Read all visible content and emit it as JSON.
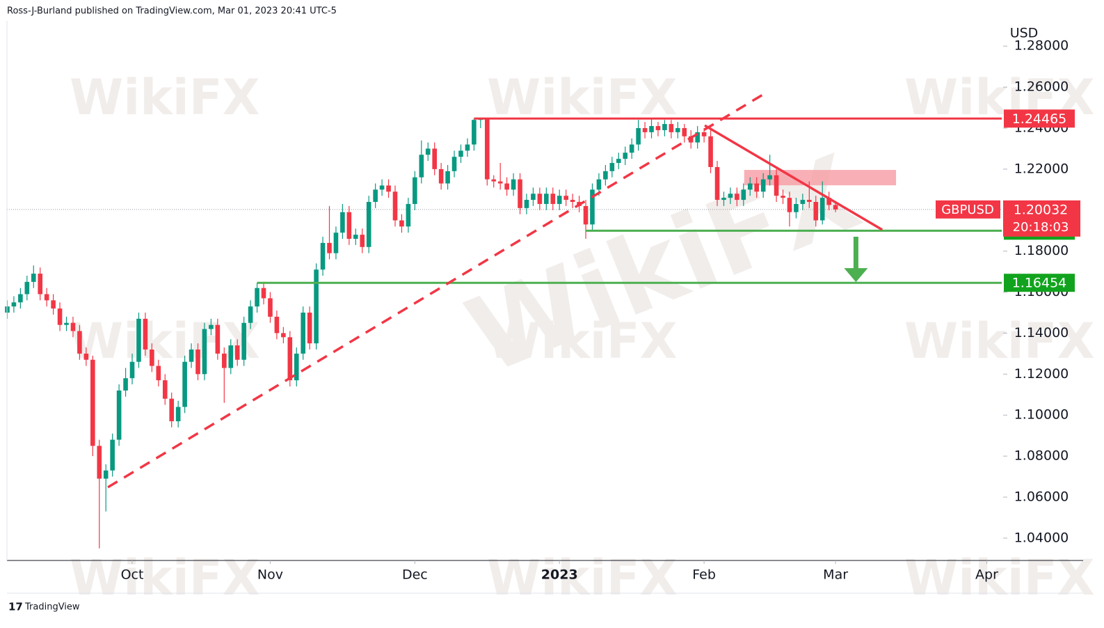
{
  "chart_data": {
    "type": "candlestick",
    "header": "Ross-J-Burland published on TradingView.com, Mar 01, 2023 20:41 UTC-5",
    "currency": "USD",
    "footer": "TradingView",
    "watermark": "WikiFX",
    "countdown": "20:18:03",
    "last_price": 1.20032,
    "ylim": [
      1.0291,
      1.2923
    ],
    "yticks": [
      {
        "value": 1.04,
        "label": "1.04000"
      },
      {
        "value": 1.06,
        "label": "1.06000"
      },
      {
        "value": 1.08,
        "label": "1.08000"
      },
      {
        "value": 1.1,
        "label": "1.10000"
      },
      {
        "value": 1.12,
        "label": "1.12000"
      },
      {
        "value": 1.14,
        "label": "1.14000"
      },
      {
        "value": 1.16,
        "label": "1.16000"
      },
      {
        "value": 1.18,
        "label": "1.18000"
      },
      {
        "value": 1.2,
        "label": "1.20000"
      },
      {
        "value": 1.22,
        "label": "1.22000"
      },
      {
        "value": 1.24,
        "label": "1.24000"
      },
      {
        "value": 1.26,
        "label": "1.26000"
      },
      {
        "value": 1.28,
        "label": "1.28000"
      }
    ],
    "xlim": [
      -0.05,
      151.28
    ],
    "xticks": [
      {
        "value": 19,
        "label": "Oct"
      },
      {
        "value": 40,
        "label": "Nov"
      },
      {
        "value": 62,
        "label": "Dec"
      },
      {
        "value": 84,
        "label": "2023"
      },
      {
        "value": 106,
        "label": "Feb"
      },
      {
        "value": 126,
        "label": "Mar"
      },
      {
        "value": 149,
        "label": "Apr"
      }
    ],
    "series": [
      {
        "name": "GBPUSD",
        "up_color": "#089981",
        "down_color": "#f23645",
        "open": [
          1.15,
          1.153,
          1.155,
          1.159,
          1.165,
          1.169,
          1.159,
          1.156,
          1.152,
          1.144,
          1.145,
          1.141,
          1.13,
          1.127,
          1.085,
          1.069,
          1.073,
          1.088,
          1.112,
          1.118,
          1.126,
          1.147,
          1.132,
          1.124,
          1.117,
          1.108,
          1.097,
          1.104,
          1.126,
          1.132,
          1.12,
          1.142,
          1.144,
          1.13,
          1.123,
          1.134,
          1.127,
          1.145,
          1.153,
          1.162,
          1.157,
          1.148,
          1.14,
          1.138,
          1.117,
          1.13,
          1.15,
          1.135,
          1.171,
          1.184,
          1.179,
          1.189,
          1.199,
          1.186,
          1.188,
          1.182,
          1.204,
          1.21,
          1.212,
          1.209,
          1.195,
          1.192,
          1.203,
          1.216,
          1.227,
          1.23,
          1.22,
          1.213,
          1.219,
          1.226,
          1.229,
          1.232,
          1.244,
          1.2445,
          1.215,
          1.214,
          1.213,
          1.21,
          1.215,
          1.201,
          1.205,
          1.208,
          1.203,
          1.208,
          1.203,
          1.207,
          1.205,
          1.204,
          1.202,
          1.193,
          1.21,
          1.215,
          1.219,
          1.223,
          1.225,
          1.228,
          1.232,
          1.24,
          1.238,
          1.241,
          1.239,
          1.242,
          1.238,
          1.24,
          1.236,
          1.233,
          1.238,
          1.236,
          1.221,
          1.205,
          1.206,
          1.208,
          1.205,
          1.21,
          1.213,
          1.209,
          1.215,
          1.217,
          1.207,
          1.206,
          1.199,
          1.203,
          1.205,
          1.204,
          1.195,
          1.206,
          1.2025
        ],
        "high": [
          1.156,
          1.158,
          1.162,
          1.168,
          1.173,
          1.172,
          1.162,
          1.159,
          1.155,
          1.148,
          1.148,
          1.144,
          1.133,
          1.129,
          1.088,
          1.076,
          1.091,
          1.115,
          1.123,
          1.13,
          1.15,
          1.15,
          1.135,
          1.127,
          1.12,
          1.111,
          1.107,
          1.129,
          1.135,
          1.135,
          1.145,
          1.147,
          1.147,
          1.133,
          1.137,
          1.137,
          1.148,
          1.156,
          1.1645,
          1.165,
          1.16,
          1.151,
          1.143,
          1.141,
          1.133,
          1.153,
          1.153,
          1.174,
          1.187,
          1.202,
          1.192,
          1.203,
          1.202,
          1.191,
          1.191,
          1.207,
          1.213,
          1.215,
          1.215,
          1.212,
          1.198,
          1.206,
          1.219,
          1.234,
          1.233,
          1.233,
          1.223,
          1.222,
          1.229,
          1.232,
          1.235,
          1.2446,
          1.2446,
          1.245,
          1.217,
          1.223,
          1.216,
          1.218,
          1.218,
          1.208,
          1.211,
          1.211,
          1.211,
          1.211,
          1.21,
          1.21,
          1.208,
          1.207,
          1.205,
          1.213,
          1.218,
          1.222,
          1.226,
          1.228,
          1.231,
          1.235,
          1.244,
          1.243,
          1.2447,
          1.243,
          1.244,
          1.244,
          1.243,
          1.242,
          1.239,
          1.241,
          1.24,
          1.239,
          1.224,
          1.209,
          1.211,
          1.211,
          1.213,
          1.216,
          1.216,
          1.218,
          1.227,
          1.22,
          1.21,
          1.209,
          1.206,
          1.208,
          1.214,
          1.207,
          1.214,
          1.209,
          1.204
        ],
        "low": [
          1.147,
          1.15,
          1.152,
          1.156,
          1.162,
          1.156,
          1.153,
          1.149,
          1.141,
          1.141,
          1.138,
          1.127,
          1.124,
          1.08,
          1.035,
          1.053,
          1.07,
          1.085,
          1.109,
          1.115,
          1.123,
          1.129,
          1.121,
          1.114,
          1.105,
          1.094,
          1.094,
          1.101,
          1.123,
          1.117,
          1.117,
          1.139,
          1.127,
          1.106,
          1.12,
          1.124,
          1.124,
          1.142,
          1.15,
          1.154,
          1.145,
          1.137,
          1.135,
          1.114,
          1.114,
          1.127,
          1.132,
          1.132,
          1.168,
          1.176,
          1.176,
          1.186,
          1.183,
          1.183,
          1.179,
          1.179,
          1.201,
          1.207,
          1.206,
          1.192,
          1.189,
          1.189,
          1.2,
          1.213,
          1.224,
          1.217,
          1.21,
          1.21,
          1.216,
          1.223,
          1.226,
          1.229,
          1.24,
          1.212,
          1.211,
          1.21,
          1.207,
          1.207,
          1.198,
          1.198,
          1.202,
          1.2,
          1.2,
          1.2,
          1.2,
          1.202,
          1.201,
          1.199,
          1.186,
          1.19,
          1.207,
          1.212,
          1.216,
          1.22,
          1.222,
          1.225,
          1.229,
          1.235,
          1.235,
          1.236,
          1.236,
          1.235,
          1.235,
          1.233,
          1.23,
          1.23,
          1.233,
          1.218,
          1.202,
          1.202,
          1.203,
          1.202,
          1.202,
          1.207,
          1.206,
          1.206,
          1.212,
          1.204,
          1.203,
          1.192,
          1.196,
          1.2,
          1.201,
          1.192,
          1.193,
          1.2,
          1.199
        ],
        "close": [
          1.153,
          1.155,
          1.159,
          1.165,
          1.169,
          1.159,
          1.156,
          1.152,
          1.144,
          1.145,
          1.141,
          1.13,
          1.127,
          1.085,
          1.069,
          1.073,
          1.088,
          1.112,
          1.118,
          1.126,
          1.147,
          1.132,
          1.124,
          1.117,
          1.108,
          1.097,
          1.104,
          1.126,
          1.132,
          1.12,
          1.142,
          1.144,
          1.13,
          1.123,
          1.134,
          1.127,
          1.145,
          1.153,
          1.162,
          1.157,
          1.148,
          1.14,
          1.138,
          1.117,
          1.13,
          1.15,
          1.135,
          1.171,
          1.184,
          1.179,
          1.189,
          1.199,
          1.186,
          1.188,
          1.182,
          1.204,
          1.21,
          1.212,
          1.209,
          1.195,
          1.192,
          1.203,
          1.216,
          1.227,
          1.23,
          1.22,
          1.213,
          1.219,
          1.226,
          1.229,
          1.232,
          1.244,
          1.2445,
          1.215,
          1.214,
          1.213,
          1.21,
          1.215,
          1.201,
          1.205,
          1.208,
          1.203,
          1.208,
          1.203,
          1.207,
          1.205,
          1.204,
          1.202,
          1.193,
          1.21,
          1.215,
          1.219,
          1.223,
          1.225,
          1.228,
          1.232,
          1.24,
          1.238,
          1.241,
          1.239,
          1.242,
          1.238,
          1.24,
          1.236,
          1.233,
          1.238,
          1.236,
          1.221,
          1.205,
          1.206,
          1.208,
          1.205,
          1.21,
          1.213,
          1.209,
          1.215,
          1.217,
          1.207,
          1.206,
          1.199,
          1.203,
          1.205,
          1.204,
          1.195,
          1.206,
          1.2025,
          1.2003
        ]
      }
    ],
    "levels": [
      {
        "value": 1.24465,
        "color": "#f23645",
        "start": 71
      },
      {
        "value": 1.18997,
        "color": "#4caf50",
        "start": 88
      },
      {
        "value": 1.16454,
        "color": "#4caf50",
        "start": 38
      }
    ],
    "trendlines": [
      {
        "style": "dashed",
        "color": "#f23645",
        "points": [
          [
            15.3,
            1.0648
          ],
          [
            115.6,
            1.2576
          ]
        ]
      },
      {
        "style": "solid",
        "color": "#f23645",
        "points": [
          [
            106.1,
            1.2413
          ],
          [
            133.1,
            1.1904
          ]
        ]
      }
    ],
    "zone": {
      "x": [
        112.1,
        135.2
      ],
      "y": [
        1.2121,
        1.2196
      ],
      "color": "#f7a1a8"
    },
    "arrow": {
      "x": 129.1,
      "y": [
        1.187,
        1.1649
      ],
      "color": "#4caf50"
    }
  }
}
